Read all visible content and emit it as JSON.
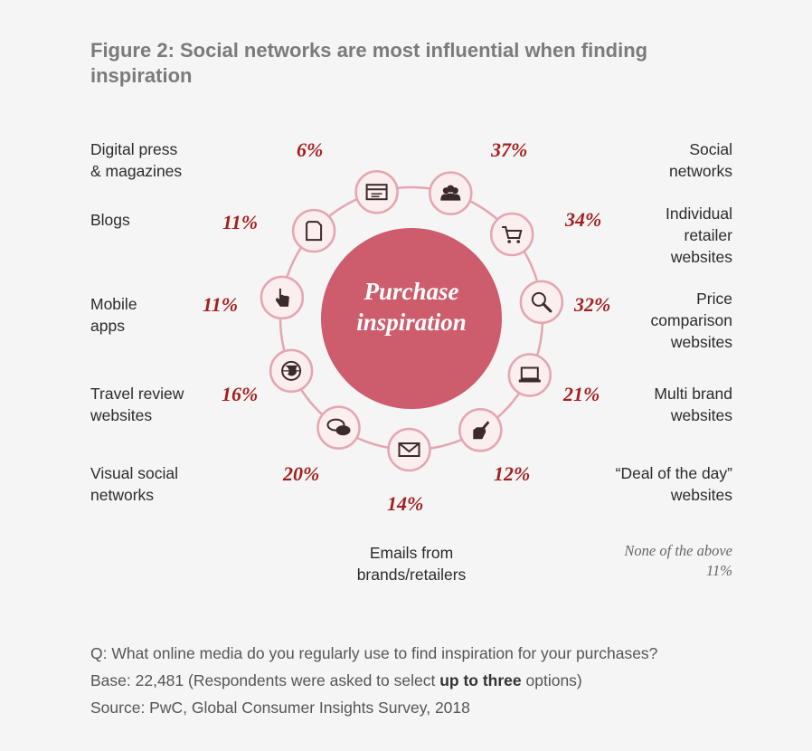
{
  "title": "Figure 2: Social networks are most influential when finding inspiration",
  "chart_data": {
    "type": "radial",
    "center_label_line1": "Purchase",
    "center_label_line2": "inspiration",
    "categories": [
      {
        "label_lines": [
          "Social",
          "networks"
        ],
        "value": 37,
        "display": "37%",
        "icon": "people-icon"
      },
      {
        "label_lines": [
          "Individual",
          "retailer",
          "websites"
        ],
        "value": 34,
        "display": "34%",
        "icon": "cart-icon"
      },
      {
        "label_lines": [
          "Price",
          "comparison",
          "websites"
        ],
        "value": 32,
        "display": "32%",
        "icon": "magnifier-icon"
      },
      {
        "label_lines": [
          "Multi brand",
          "websites"
        ],
        "value": 21,
        "display": "21%",
        "icon": "laptop-icon"
      },
      {
        "label_lines": [
          "“Deal of the day”",
          "websites"
        ],
        "value": 12,
        "display": "12%",
        "icon": "pointing-hand-icon"
      },
      {
        "label_lines": [
          "Emails from",
          "brands/retailers"
        ],
        "value": 14,
        "display": "14%",
        "icon": "envelope-icon"
      },
      {
        "label_lines": [
          "Visual social",
          "networks"
        ],
        "value": 20,
        "display": "20%",
        "icon": "speech-bubbles-icon"
      },
      {
        "label_lines": [
          "Travel review",
          "websites"
        ],
        "value": 16,
        "display": "16%",
        "icon": "globe-icon"
      },
      {
        "label_lines": [
          "Mobile",
          "apps"
        ],
        "value": 11,
        "display": "11%",
        "icon": "touch-hand-icon"
      },
      {
        "label_lines": [
          "Blogs"
        ],
        "value": 11,
        "display": "11%",
        "icon": "document-icon"
      },
      {
        "label_lines": [
          "Digital press",
          "& magazines"
        ],
        "value": 6,
        "display": "6%",
        "icon": "browser-window-icon"
      }
    ],
    "none_of_the_above": {
      "label": "None of the above",
      "display": "11%",
      "value": 11
    },
    "colors": {
      "accent": "#a32020",
      "circle": "#cd5c6c",
      "ring": "#e4a6b0",
      "node_fill": "#fbeeee",
      "icon": "#3a2a2a"
    }
  },
  "footer": {
    "question": "Q: What online media do you regularly use to find inspiration for your purchases?",
    "base_prefix": "Base: 22,481 (Respondents were asked to select ",
    "base_bold": "up to three",
    "base_suffix": " options)",
    "source": "Source: PwC, Global Consumer Insights Survey, 2018"
  }
}
